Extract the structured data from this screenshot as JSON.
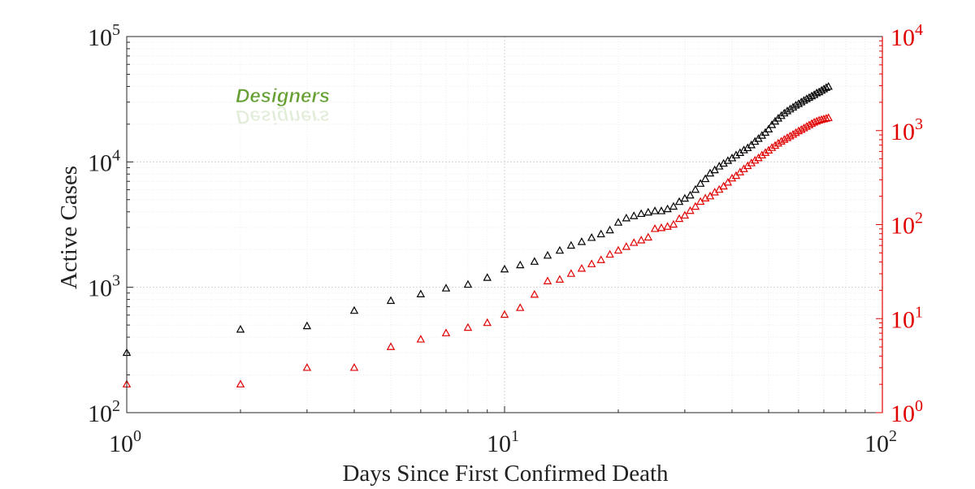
{
  "chart_data": {
    "type": "scatter",
    "title": "",
    "xlabel": "Days Since First Confirmed Death",
    "ylabel_left": "Active Cases",
    "ylabel_right": "",
    "x_scale": "log",
    "y_left_scale": "log",
    "y_right_scale": "log",
    "xlim": [
      1,
      100
    ],
    "ylim_left": [
      100,
      100000
    ],
    "ylim_right": [
      1,
      10000
    ],
    "x_ticks": [
      {
        "b": "10",
        "e": "0"
      },
      {
        "b": "10",
        "e": "1"
      },
      {
        "b": "10",
        "e": "2"
      }
    ],
    "y_left_ticks": [
      {
        "b": "10",
        "e": "2"
      },
      {
        "b": "10",
        "e": "3"
      },
      {
        "b": "10",
        "e": "4"
      },
      {
        "b": "10",
        "e": "5"
      }
    ],
    "y_right_ticks": [
      {
        "b": "10",
        "e": "0"
      },
      {
        "b": "10",
        "e": "1"
      },
      {
        "b": "10",
        "e": "2"
      },
      {
        "b": "10",
        "e": "3"
      },
      {
        "b": "10",
        "e": "4"
      }
    ],
    "grid": true,
    "marker": "triangle",
    "series": [
      {
        "axis": "left",
        "color": "#000000",
        "x": [
          1,
          2,
          3,
          4,
          5,
          6,
          7,
          8,
          9,
          10,
          11,
          12,
          13,
          14,
          15,
          16,
          17,
          18,
          19,
          20,
          21,
          22,
          23,
          24,
          25,
          26,
          27,
          28,
          29,
          30,
          31,
          32,
          33,
          34,
          35,
          36,
          37,
          38,
          39,
          40,
          41,
          42,
          43,
          44,
          45,
          46,
          47,
          48,
          49,
          50,
          51,
          52,
          53,
          54,
          55,
          56,
          57,
          58,
          59,
          60,
          61,
          62,
          63,
          64,
          65,
          66,
          67,
          68,
          69,
          70,
          71,
          72
        ],
        "y": [
          300,
          460,
          490,
          650,
          780,
          880,
          980,
          1050,
          1190,
          1390,
          1500,
          1600,
          1790,
          1960,
          2150,
          2300,
          2480,
          2650,
          2850,
          3280,
          3550,
          3700,
          3850,
          3950,
          4050,
          4050,
          4200,
          4400,
          4800,
          5100,
          5400,
          6000,
          6700,
          7300,
          8100,
          8600,
          9200,
          9700,
          10200,
          10700,
          11300,
          11800,
          12400,
          12900,
          13600,
          14500,
          15300,
          16200,
          17100,
          18200,
          19700,
          21000,
          22200,
          23300,
          24400,
          25400,
          26300,
          27200,
          28200,
          29000,
          29900,
          30800,
          31700,
          32500,
          33400,
          34200,
          35300,
          36000,
          37000,
          38000,
          39000,
          39800
        ]
      },
      {
        "axis": "right",
        "color": "#e00000",
        "x": [
          1,
          2,
          3,
          4,
          5,
          6,
          7,
          8,
          9,
          10,
          11,
          12,
          13,
          14,
          15,
          16,
          17,
          18,
          19,
          20,
          21,
          22,
          23,
          24,
          25,
          26,
          27,
          28,
          29,
          30,
          31,
          32,
          33,
          34,
          35,
          36,
          37,
          38,
          39,
          40,
          41,
          42,
          43,
          44,
          45,
          46,
          47,
          48,
          49,
          50,
          51,
          52,
          53,
          54,
          55,
          56,
          57,
          58,
          59,
          60,
          61,
          62,
          63,
          64,
          65,
          66,
          67,
          68,
          69,
          70,
          71,
          72
        ],
        "y": [
          2,
          2,
          3,
          3,
          5,
          6,
          7,
          8,
          9,
          11,
          13,
          18,
          25,
          26,
          30,
          34,
          38,
          42,
          48,
          53,
          58,
          64,
          68,
          73,
          90,
          92,
          95,
          100,
          115,
          125,
          140,
          155,
          175,
          190,
          200,
          220,
          235,
          255,
          280,
          310,
          330,
          360,
          390,
          420,
          450,
          480,
          510,
          545,
          580,
          615,
          655,
          690,
          730,
          765,
          800,
          835,
          870,
          905,
          945,
          985,
          1020,
          1060,
          1100,
          1140,
          1180,
          1220,
          1250,
          1280,
          1300,
          1320,
          1340,
          1360
        ]
      }
    ]
  },
  "watermark": {
    "text": "Designers",
    "color": "#66a035"
  },
  "colors": {
    "left_axis": "#000000",
    "right_axis": "#e00000",
    "grid_major": "#d4d4d4",
    "grid_minor": "#ececec"
  }
}
